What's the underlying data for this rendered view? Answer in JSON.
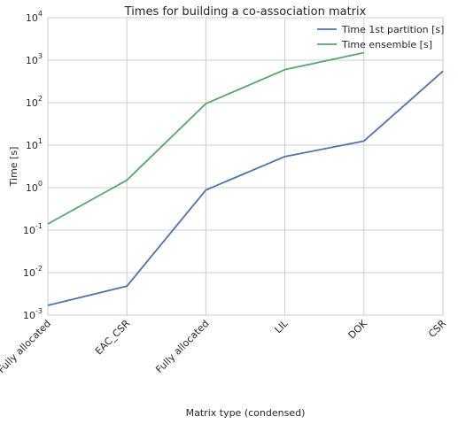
{
  "chart_data": {
    "type": "line",
    "title": "Times for building a co-association matrix",
    "xlabel": "Matrix type (condensed)",
    "ylabel": "Time [s]",
    "yscale": "log",
    "ylim": [
      0.001,
      10000
    ],
    "yticks": [
      {
        "value": 0.001,
        "base": "10",
        "exp": "-3"
      },
      {
        "value": 0.01,
        "base": "10",
        "exp": "-2"
      },
      {
        "value": 0.1,
        "base": "10",
        "exp": "-1"
      },
      {
        "value": 1,
        "base": "10",
        "exp": "0"
      },
      {
        "value": 10,
        "base": "10",
        "exp": "1"
      },
      {
        "value": 100,
        "base": "10",
        "exp": "2"
      },
      {
        "value": 1000,
        "base": "10",
        "exp": "3"
      },
      {
        "value": 10000,
        "base": "10",
        "exp": "4"
      }
    ],
    "categories": [
      "Optimized Fully allocated",
      "EAC_CSR",
      "Fully allocated",
      "LIL",
      "DOK",
      "CSR"
    ],
    "grid": true,
    "legend_position": "top-right",
    "series": [
      {
        "name": "Time 1st partition [s]",
        "color": "#4c72b0",
        "values": [
          0.0017,
          0.0048,
          0.88,
          5.4,
          12.5,
          550
        ]
      },
      {
        "name": "Time ensemble [s]",
        "color": "#55a868",
        "values": [
          0.14,
          1.5,
          95,
          600,
          1500,
          null
        ]
      }
    ]
  }
}
